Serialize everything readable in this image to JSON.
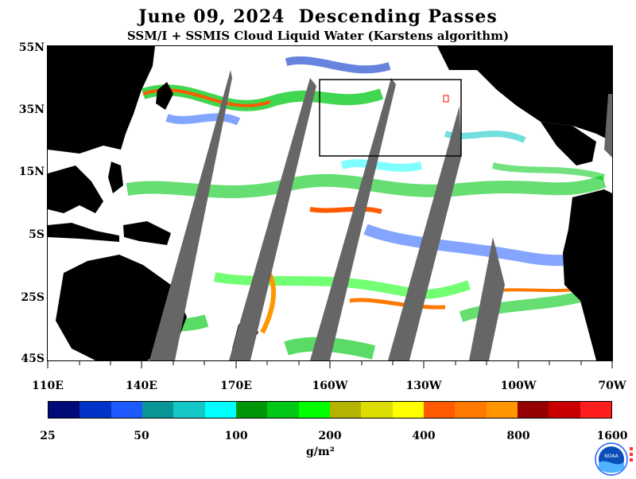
{
  "header": {
    "title": "June 09, 2024  Descending Passes",
    "subtitle": "SSM/I + SSMIS Cloud Liquid Water (Karstens algorithm)"
  },
  "map": {
    "lat_labels": [
      "55N",
      "35N",
      "15N",
      "5S",
      "25S",
      "45S"
    ],
    "lon_labels": [
      "110E",
      "140E",
      "170E",
      "160W",
      "130W",
      "100W",
      "70W"
    ]
  },
  "colorbar": {
    "units": "g/m²",
    "labels": [
      "25",
      "50",
      "100",
      "200",
      "400",
      "800",
      "1600"
    ],
    "colors": [
      "#000a78",
      "#0032c8",
      "#1e5aff",
      "#0a9696",
      "#14c8c8",
      "#00ffff",
      "#00960a",
      "#00c814",
      "#00ff00",
      "#b4b400",
      "#dcdc00",
      "#ffff00",
      "#ff5a00",
      "#ff7800",
      "#ff9600",
      "#960000",
      "#c80000",
      "#ff1e1e"
    ]
  },
  "colors": {
    "land": "#000000",
    "no_data": "#666666",
    "ocean_clear": "#ffffff"
  },
  "logo": {
    "text": "NOAA"
  }
}
